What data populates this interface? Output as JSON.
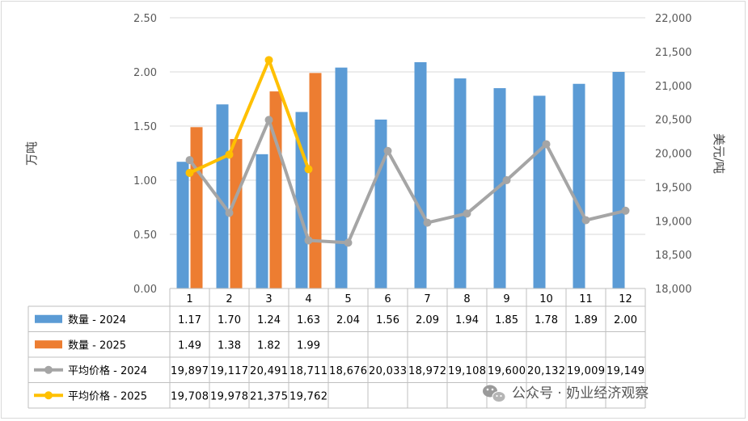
{
  "chart_data": {
    "type": "bar",
    "categories": [
      "1",
      "2",
      "3",
      "4",
      "5",
      "6",
      "7",
      "8",
      "9",
      "10",
      "11",
      "12"
    ],
    "ylabel_left": "万吨",
    "ylabel_right": "美元/吨",
    "ylim_left": [
      0,
      2.5
    ],
    "ylim_right": [
      18000,
      22000
    ],
    "yticks_left": [
      "0.00",
      "0.50",
      "1.00",
      "1.50",
      "2.00",
      "2.50"
    ],
    "yticks_right": [
      "18,000",
      "18,500",
      "19,000",
      "19,500",
      "20,000",
      "20,500",
      "21,000",
      "21,500",
      "22,000"
    ],
    "grid": true,
    "legend": "data-table",
    "bar_series": [
      {
        "name": "数量 - 2024",
        "color": "#5b9bd5",
        "axis": "left",
        "values": [
          1.17,
          1.7,
          1.24,
          1.63,
          2.04,
          1.56,
          2.09,
          1.94,
          1.85,
          1.78,
          1.89,
          2.0
        ],
        "labels": [
          "1.17",
          "1.70",
          "1.24",
          "1.63",
          "2.04",
          "1.56",
          "2.09",
          "1.94",
          "1.85",
          "1.78",
          "1.89",
          "2.00"
        ]
      },
      {
        "name": "数量 - 2025",
        "color": "#ed7d31",
        "axis": "left",
        "values": [
          1.49,
          1.38,
          1.82,
          1.99
        ],
        "labels": [
          "1.49",
          "1.38",
          "1.82",
          "1.99"
        ]
      }
    ],
    "line_series": [
      {
        "name": "平均价格 - 2024",
        "color": "#a5a5a5",
        "axis": "right",
        "values": [
          19897,
          19117,
          20491,
          18711,
          18676,
          20033,
          18972,
          19108,
          19600,
          20132,
          19009,
          19149
        ],
        "labels": [
          "19,897",
          "19,117",
          "20,491",
          "18,711",
          "18,676",
          "20,033",
          "18,972",
          "19,108",
          "19,600",
          "20,132",
          "19,009",
          "19,149"
        ]
      },
      {
        "name": "平均价格 - 2025",
        "color": "#ffc000",
        "axis": "right",
        "values": [
          19708,
          19978,
          21375,
          19762
        ],
        "labels": [
          "19,708",
          "19,978",
          "21,375",
          "19,762"
        ]
      }
    ]
  },
  "watermark": {
    "text": "公众号 · 奶业经济观察",
    "icon": "wechat-icon"
  }
}
